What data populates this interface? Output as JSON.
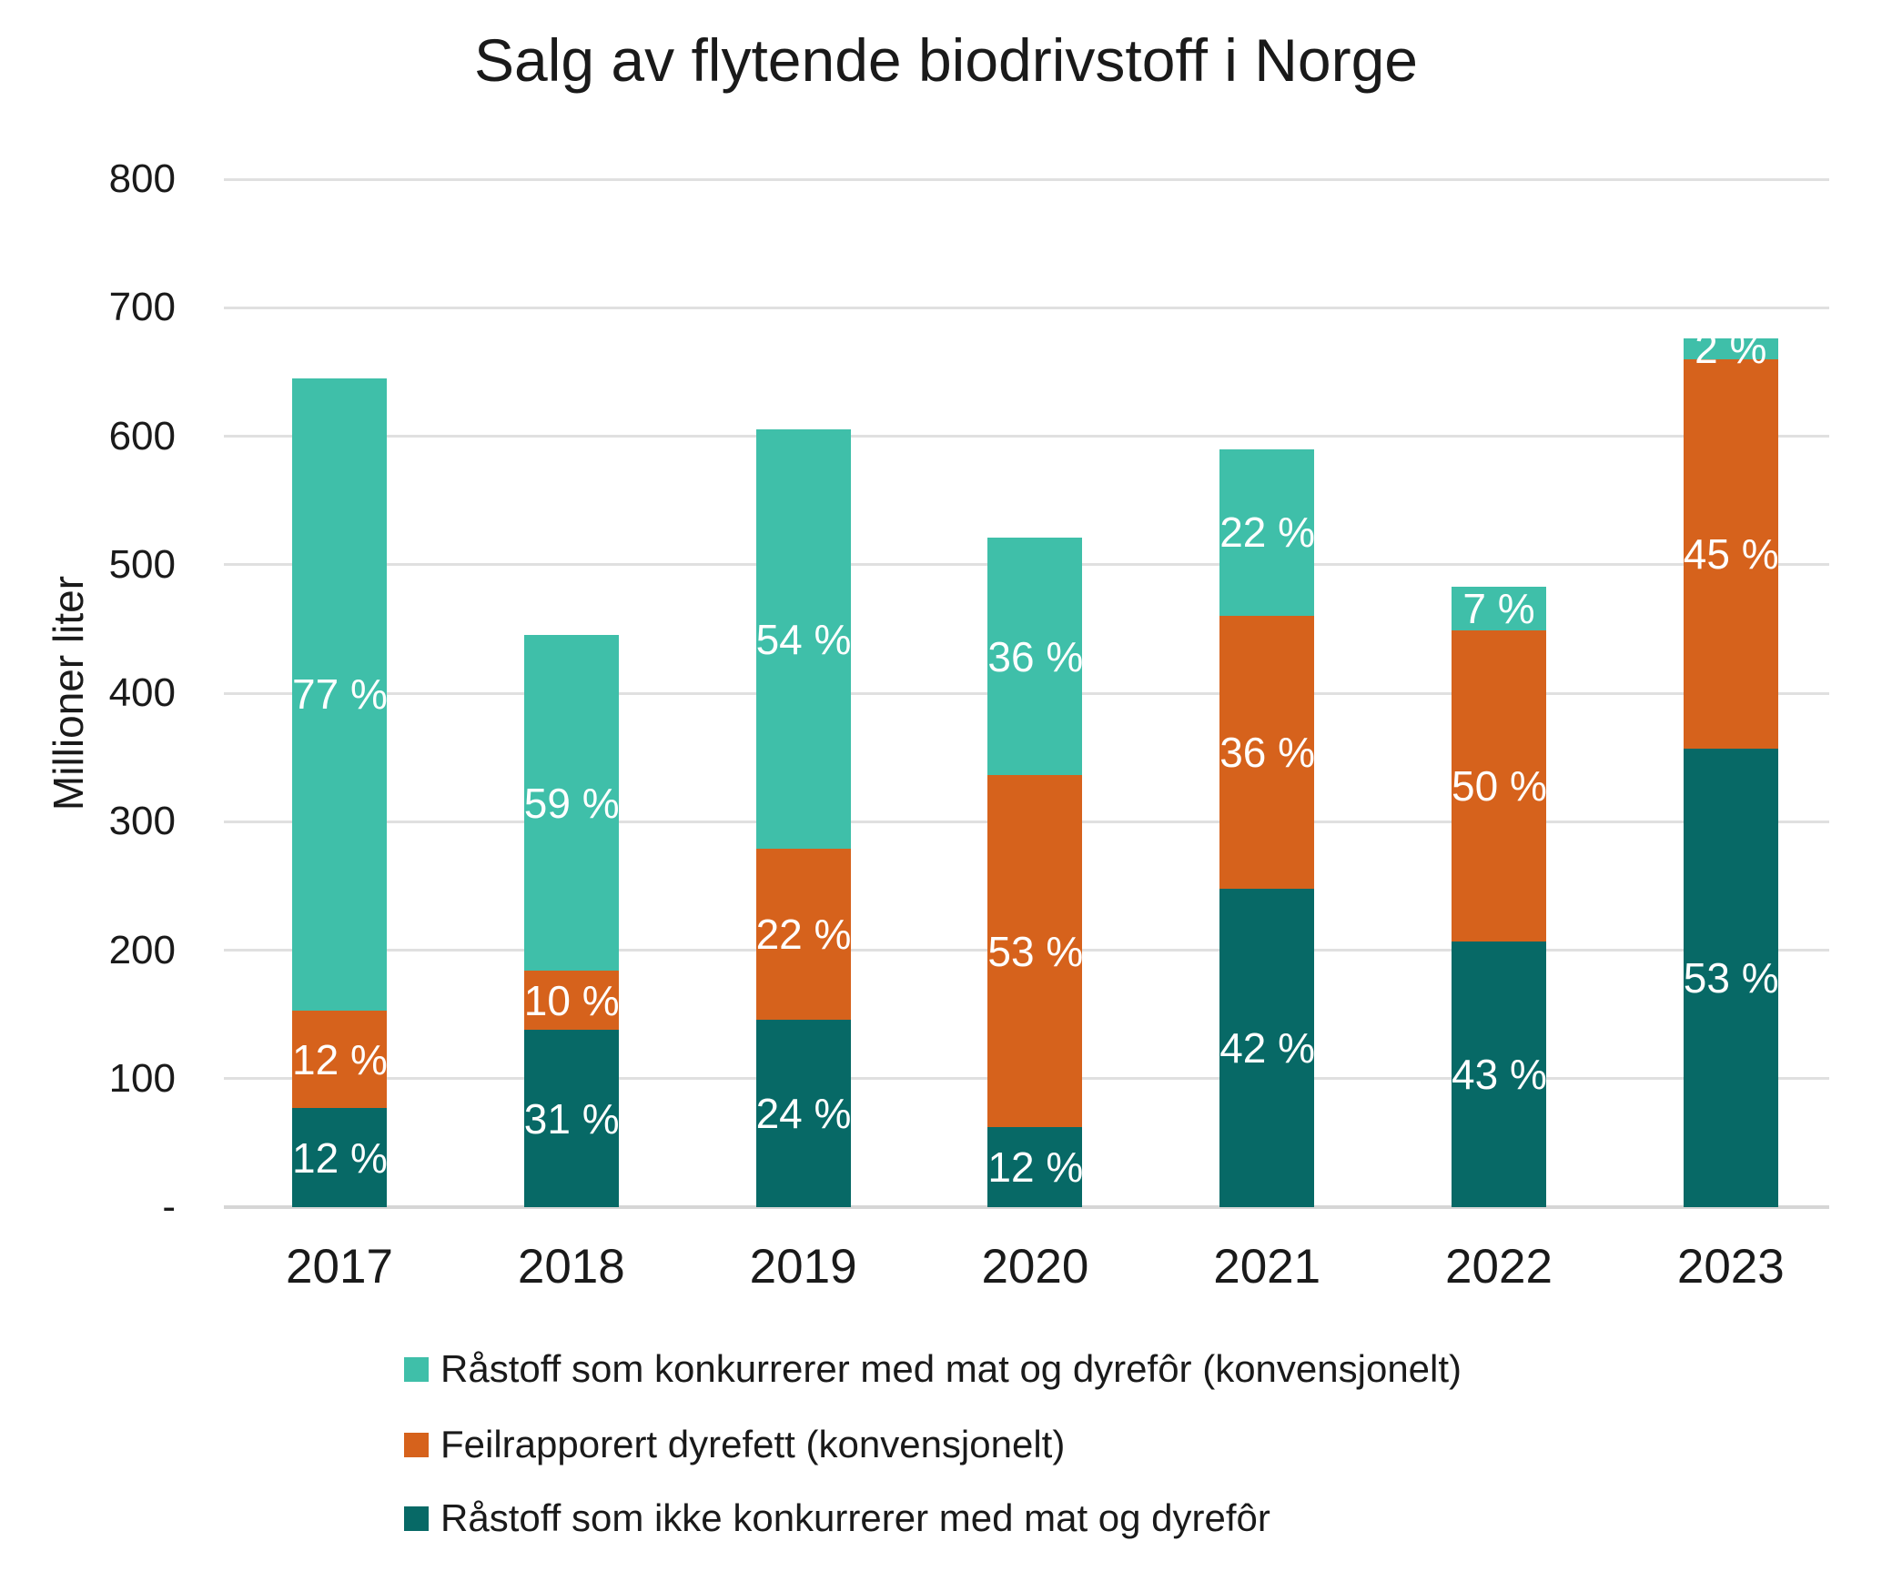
{
  "chart_data": {
    "type": "bar",
    "stacked": true,
    "title": "Salg av flytende biodrivstoff i Norge",
    "ylabel": "Millioner liter",
    "xlabel": "",
    "categories": [
      "2017",
      "2018",
      "2019",
      "2020",
      "2021",
      "2022",
      "2023"
    ],
    "ylim": [
      0,
      800
    ],
    "ytick_step": 100,
    "ytick_labels": [
      "-",
      "100",
      "200",
      "300",
      "400",
      "500",
      "600",
      "700",
      "800"
    ],
    "grid": true,
    "unit": "Millioner liter",
    "totals": [
      645,
      445,
      605,
      521,
      590,
      483,
      676
    ],
    "series": [
      {
        "name": "Råstoff som ikke konkurrerer med mat og dyrefôr",
        "color": "#076966",
        "values": [
          77,
          138,
          146,
          62,
          248,
          207,
          357
        ],
        "labels": [
          "12 %",
          "31 %",
          "24 %",
          "12 %",
          "42 %",
          "43 %",
          "53 %"
        ]
      },
      {
        "name": "Feilrapporert dyrefett (konvensjonelt)",
        "color": "#d6621c",
        "values": [
          76,
          46,
          133,
          274,
          212,
          242,
          303
        ],
        "labels": [
          "12 %",
          "10 %",
          "22 %",
          "53 %",
          "36 %",
          "50 %",
          "45 %"
        ]
      },
      {
        "name": "Råstoff som konkurrerer med mat og dyrefôr (konvensjonelt)",
        "color": "#3fbfa9",
        "values": [
          492,
          261,
          326,
          185,
          130,
          34,
          16
        ],
        "labels": [
          "77 %",
          "59 %",
          "54 %",
          "36 %",
          "22 %",
          "7 %",
          "2 %"
        ]
      }
    ],
    "legend_position": "bottom",
    "legend": [
      {
        "label": "Råstoff som konkurrerer med mat og dyrefôr (konvensjonelt)",
        "color": "#3fbfa9"
      },
      {
        "label": "Feilrapporert dyrefett (konvensjonelt)",
        "color": "#d6621c"
      },
      {
        "label": "Råstoff som ikke konkurrerer med mat og dyrefôr",
        "color": "#076966"
      }
    ]
  }
}
